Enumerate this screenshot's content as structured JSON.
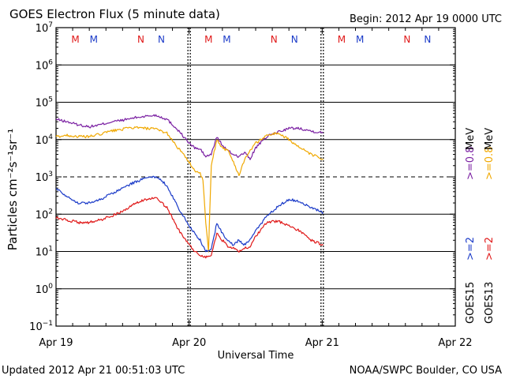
{
  "chart_data": {
    "type": "line",
    "title": "GOES Electron Flux (5 minute data)",
    "begin": "Begin: 2012 Apr 19 0000 UTC",
    "xlabel": "Universal Time",
    "ylabel": "Particles cm⁻²s⁻¹sr⁻¹",
    "yscale": "log",
    "ylim": [
      0.1,
      10000000
    ],
    "xlim_hours": [
      0,
      72
    ],
    "x_tick_labels": [
      {
        "h": 0,
        "label": "Apr 19"
      },
      {
        "h": 24,
        "label": "Apr 20"
      },
      {
        "h": 48,
        "label": "Apr 21"
      },
      {
        "h": 72,
        "label": "Apr 22"
      }
    ],
    "y_tick_exponents": [
      -1,
      0,
      1,
      2,
      3,
      4,
      5,
      6,
      7
    ],
    "reference_level": 1000,
    "markers": [
      {
        "h": 3.5,
        "label": "M",
        "sat": "GOES13"
      },
      {
        "h": 6.8,
        "label": "M",
        "sat": "GOES15"
      },
      {
        "h": 15.3,
        "label": "N",
        "sat": "GOES13"
      },
      {
        "h": 19.0,
        "label": "N",
        "sat": "GOES15"
      },
      {
        "h": 27.5,
        "label": "M",
        "sat": "GOES13"
      },
      {
        "h": 30.8,
        "label": "M",
        "sat": "GOES15"
      },
      {
        "h": 39.3,
        "label": "N",
        "sat": "GOES13"
      },
      {
        "h": 43.0,
        "label": "N",
        "sat": "GOES15"
      },
      {
        "h": 51.5,
        "label": "M",
        "sat": "GOES13"
      },
      {
        "h": 54.8,
        "label": "M",
        "sat": "GOES15"
      },
      {
        "h": 63.3,
        "label": "N",
        "sat": "GOES13"
      },
      {
        "h": 67.0,
        "label": "N",
        "sat": "GOES15"
      }
    ],
    "series": [
      {
        "name": ">=0.8 MeV",
        "satellite": "GOES15",
        "color": "#7a1fa2",
        "x": [
          0,
          2,
          4,
          6,
          8,
          10,
          12,
          14,
          16,
          18,
          20,
          22,
          24,
          25,
          26,
          27,
          28,
          29,
          30,
          31,
          32,
          33,
          34,
          35,
          36,
          38,
          40,
          42,
          44,
          46,
          48.2
        ],
        "y": [
          35000,
          30000,
          25000,
          22000,
          25000,
          30000,
          33000,
          38000,
          42000,
          45000,
          35000,
          18000,
          8000,
          6000,
          5500,
          3500,
          4000,
          12000,
          7000,
          5000,
          4000,
          3500,
          4500,
          3000,
          6000,
          12000,
          16000,
          20000,
          20000,
          17000,
          15000
        ]
      },
      {
        "name": ">=0.8 MeV",
        "satellite": "GOES13",
        "color": "#f0a800",
        "x": [
          0,
          2,
          4,
          6,
          8,
          10,
          12,
          14,
          16,
          18,
          20,
          22,
          24,
          25,
          26,
          26.5,
          27,
          27.5,
          28,
          29,
          30,
          31,
          32,
          33,
          34,
          35,
          36,
          38,
          40,
          42,
          44,
          46,
          48.2
        ],
        "y": [
          12000,
          13000,
          12000,
          12000,
          14000,
          17000,
          19000,
          21000,
          20000,
          19000,
          15000,
          6000,
          2500,
          1500,
          1200,
          800,
          60,
          10,
          2000,
          10000,
          6000,
          5000,
          2500,
          1100,
          3000,
          5000,
          8000,
          13000,
          15000,
          10000,
          6000,
          4000,
          3000
        ]
      },
      {
        "name": ">=2 MeV",
        "satellite": "GOES15",
        "color": "#1a3ac8",
        "x": [
          0,
          2,
          4,
          6,
          8,
          10,
          12,
          14,
          16,
          18,
          20,
          22,
          24,
          25,
          26,
          27,
          28,
          29,
          30,
          31,
          32,
          33,
          34,
          35,
          36,
          38,
          40,
          42,
          44,
          46,
          48.2
        ],
        "y": [
          500,
          300,
          200,
          200,
          250,
          350,
          500,
          700,
          900,
          1000,
          600,
          150,
          50,
          30,
          20,
          10,
          11,
          60,
          30,
          20,
          15,
          20,
          15,
          20,
          35,
          90,
          160,
          250,
          220,
          150,
          110
        ]
      },
      {
        "name": ">=2 MeV",
        "satellite": "GOES13",
        "color": "#e01818",
        "x": [
          0,
          2,
          4,
          6,
          8,
          10,
          12,
          14,
          16,
          18,
          20,
          22,
          24,
          25,
          26,
          27,
          28,
          29,
          30,
          31,
          32,
          33,
          34,
          35,
          36,
          38,
          40,
          42,
          44,
          46,
          48.2
        ],
        "y": [
          80,
          70,
          60,
          60,
          70,
          90,
          120,
          180,
          250,
          270,
          150,
          40,
          15,
          10,
          8,
          7,
          8,
          30,
          20,
          14,
          12,
          10,
          12,
          14,
          25,
          60,
          65,
          50,
          35,
          20,
          15
        ]
      }
    ],
    "legend": [
      {
        "label": ">=0.8 MeV",
        "satellite": "GOES15",
        "color": "#7a1fa2"
      },
      {
        "label": ">=0.8 MeV",
        "satellite": "GOES13",
        "color": "#f0a800"
      },
      {
        "label": ">=2 MeV",
        "satellite": "GOES15",
        "color": "#1a3ac8"
      },
      {
        "label": ">=2 MeV",
        "satellite": "GOES13",
        "color": "#e01818"
      }
    ],
    "satellites": [
      "GOES15",
      "GOES13"
    ],
    "unit_mev": "MeV"
  },
  "footer": {
    "updated": "Updated 2012 Apr 21 00:51:03 UTC",
    "source": "NOAA/SWPC Boulder, CO USA"
  },
  "colors": {
    "marker_GOES13": "#e01818",
    "marker_GOES15": "#1a3ac8"
  }
}
